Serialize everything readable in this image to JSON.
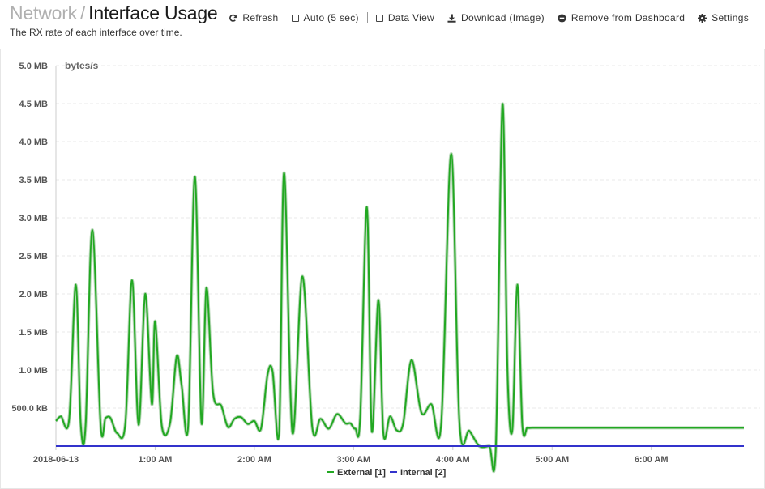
{
  "header": {
    "breadcrumb_parent": "Network",
    "separator": "/",
    "page_title": "Interface Usage",
    "subtitle": "The RX rate of each interface over time."
  },
  "toolbar": {
    "refresh_label": "Refresh",
    "auto_label": "Auto (5 sec)",
    "data_view_label": "Data View",
    "download_label": "Download (Image)",
    "remove_label": "Remove from Dashboard",
    "settings_label": "Settings"
  },
  "icons": {
    "refresh": "refresh-icon",
    "download": "download-icon",
    "remove": "minus-circle-icon",
    "settings": "gear-icon"
  },
  "chart_data": {
    "type": "line",
    "title": "",
    "xlabel": "",
    "ylabel": "bytes/s",
    "ylim": [
      0,
      5000000
    ],
    "y_ticks": [
      500000,
      1000000,
      1500000,
      2000000,
      2500000,
      3000000,
      3500000,
      4000000,
      4500000,
      5000000
    ],
    "y_tick_labels": [
      "500.0 kB",
      "1.0 MB",
      "1.5 MB",
      "2.0 MB",
      "2.5 MB",
      "3.0 MB",
      "3.5 MB",
      "4.0 MB",
      "4.5 MB",
      "5.0 MB"
    ],
    "x_range": [
      "2018-06-13 00:00",
      "2018-06-13 06:56"
    ],
    "x_ticks": [
      "2018-06-13 00:00",
      "2018-06-13 01:00",
      "2018-06-13 02:00",
      "2018-06-13 03:00",
      "2018-06-13 04:00",
      "2018-06-13 05:00",
      "2018-06-13 06:00"
    ],
    "x_tick_labels": [
      "2018-06-13",
      "1:00 AM",
      "2:00 AM",
      "3:00 AM",
      "4:00 AM",
      "5:00 AM",
      "6:00 AM"
    ],
    "grid": true,
    "legend_position": "bottom-center",
    "series": [
      {
        "name": "External [1]",
        "color": "#22a822",
        "x": [
          "2018-06-13 00:00",
          "2018-06-13 00:03",
          "2018-06-13 00:08",
          "2018-06-13 00:12",
          "2018-06-13 00:15",
          "2018-06-13 00:18",
          "2018-06-13 00:22",
          "2018-06-13 00:27",
          "2018-06-13 00:30",
          "2018-06-13 00:33",
          "2018-06-13 00:37",
          "2018-06-13 00:42",
          "2018-06-13 00:46",
          "2018-06-13 00:50",
          "2018-06-13 00:54",
          "2018-06-13 00:58",
          "2018-06-13 01:00",
          "2018-06-13 01:04",
          "2018-06-13 01:09",
          "2018-06-13 01:13",
          "2018-06-13 01:16",
          "2018-06-13 01:20",
          "2018-06-13 01:24",
          "2018-06-13 01:28",
          "2018-06-13 01:31",
          "2018-06-13 01:35",
          "2018-06-13 01:40",
          "2018-06-13 01:44",
          "2018-06-13 01:48",
          "2018-06-13 01:52",
          "2018-06-13 01:56",
          "2018-06-13 02:00",
          "2018-06-13 02:04",
          "2018-06-13 02:08",
          "2018-06-13 02:11",
          "2018-06-13 02:15",
          "2018-06-13 02:18",
          "2018-06-13 02:23",
          "2018-06-13 02:29",
          "2018-06-13 02:35",
          "2018-06-13 02:40",
          "2018-06-13 02:45",
          "2018-06-13 02:50",
          "2018-06-13 02:55",
          "2018-06-13 02:58",
          "2018-06-13 03:01",
          "2018-06-13 03:04",
          "2018-06-13 03:08",
          "2018-06-13 03:11",
          "2018-06-13 03:15",
          "2018-06-13 03:18",
          "2018-06-13 03:22",
          "2018-06-13 03:26",
          "2018-06-13 03:30",
          "2018-06-13 03:35",
          "2018-06-13 03:41",
          "2018-06-13 03:47",
          "2018-06-13 03:53",
          "2018-06-13 03:59",
          "2018-06-13 04:04",
          "2018-06-13 04:10",
          "2018-06-13 04:16",
          "2018-06-13 04:22",
          "2018-06-13 04:26",
          "2018-06-13 04:30",
          "2018-06-13 04:33",
          "2018-06-13 04:36",
          "2018-06-13 04:39",
          "2018-06-13 04:42",
          "2018-06-13 04:45",
          "2018-06-13 04:48",
          "2018-06-13 04:52",
          "2018-06-13 04:56",
          "2018-06-13 05:01",
          "2018-06-13 05:05",
          "2018-06-13 05:10",
          "2018-06-13 05:15",
          "2018-06-13 05:19",
          "2018-06-13 05:23",
          "2018-06-13 05:27",
          "2018-06-13 05:31",
          "2018-06-13 05:34",
          "2018-06-13 05:37",
          "2018-06-13 05:41",
          "2018-06-13 05:44",
          "2018-06-13 05:48",
          "2018-06-13 05:53",
          "2018-06-13 05:58",
          "2018-06-13 06:02",
          "2018-06-13 06:06",
          "2018-06-13 06:10",
          "2018-06-13 06:14",
          "2018-06-13 06:17",
          "2018-06-13 06:20",
          "2018-06-13 06:25",
          "2018-06-13 06:29",
          "2018-06-13 06:33",
          "2018-06-13 06:38",
          "2018-06-13 06:41",
          "2018-06-13 06:45",
          "2018-06-13 06:48",
          "2018-06-13 06:50",
          "2018-06-13 06:53",
          "2018-06-13 06:56"
        ],
        "values": [
          330000,
          390000,
          350000,
          2120000,
          290000,
          290000,
          2840000,
          290000,
          370000,
          370000,
          170000,
          300000,
          2180000,
          280000,
          2000000,
          550000,
          1640000,
          270000,
          300000,
          1180000,
          800000,
          280000,
          3540000,
          310000,
          2080000,
          700000,
          530000,
          250000,
          360000,
          380000,
          290000,
          330000,
          230000,
          940000,
          980000,
          190000,
          3590000,
          180000,
          2230000,
          250000,
          360000,
          230000,
          420000,
          300000,
          300000,
          230000,
          380000,
          3140000,
          200000,
          1920000,
          170000,
          390000,
          210000,
          300000,
          1130000,
          440000,
          550000,
          300000,
          3840000,
          300000,
          200000,
          0,
          0,
          0,
          4490000,
          1000000,
          220000,
          2120000,
          280000,
          240000,
          240000,
          240000,
          240000,
          240000,
          240000,
          240000,
          240000,
          240000,
          240000,
          240000,
          240000,
          240000,
          240000,
          240000,
          240000,
          240000,
          240000,
          240000,
          240000,
          240000,
          240000,
          240000,
          240000,
          240000,
          240000,
          240000,
          240000,
          240000,
          240000,
          240000,
          240000,
          240000,
          240000,
          240000
        ]
      },
      {
        "name": "Internal [2]",
        "color": "#3333cc",
        "x": [
          "2018-06-13 00:00",
          "2018-06-13 06:56"
        ],
        "values": [
          0,
          0
        ]
      }
    ]
  }
}
